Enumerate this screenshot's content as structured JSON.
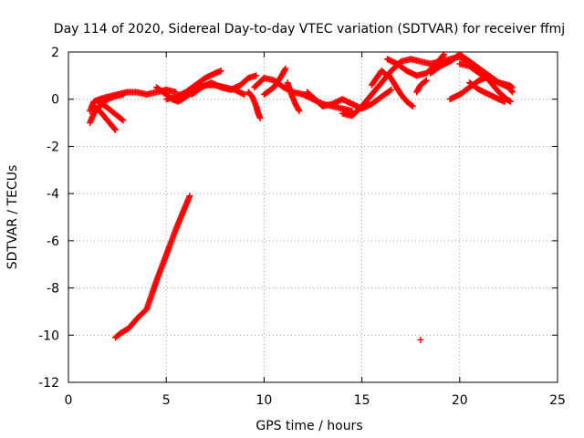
{
  "chart_data": {
    "type": "scatter",
    "title": "Day 114 of 2020, Sidereal Day-to-day VTEC variation (SDTVAR) for receiver ffmj",
    "xlabel": "GPS time / hours",
    "ylabel": "SDTVAR / TECUs",
    "xlim": [
      0,
      25
    ],
    "ylim": [
      -12,
      2
    ],
    "xticks": [
      0,
      5,
      10,
      15,
      20,
      25
    ],
    "yticks": [
      -12,
      -10,
      -8,
      -6,
      -4,
      -2,
      0,
      2
    ],
    "grid": true,
    "marker_color": "#ff0000",
    "series": [
      {
        "name": "SDTVAR",
        "tracks": [
          [
            [
              1.1,
              -0.5
            ],
            [
              1.3,
              -0.1
            ],
            [
              1.6,
              0.0
            ],
            [
              2.0,
              0.1
            ],
            [
              2.5,
              0.2
            ],
            [
              3.0,
              0.3
            ],
            [
              3.5,
              0.3
            ],
            [
              4.0,
              0.2
            ],
            [
              4.5,
              0.3
            ],
            [
              5.0,
              0.4
            ],
            [
              5.5,
              0.3
            ]
          ],
          [
            [
              1.1,
              -1.0
            ],
            [
              1.3,
              -0.6
            ],
            [
              1.6,
              -0.3
            ],
            [
              2.0,
              0.0
            ],
            [
              2.3,
              0.1
            ],
            [
              2.8,
              0.2
            ]
          ],
          [
            [
              1.2,
              -0.3
            ],
            [
              1.5,
              -0.4
            ],
            [
              1.8,
              -0.7
            ],
            [
              2.1,
              -1.0
            ],
            [
              2.4,
              -1.3
            ]
          ],
          [
            [
              1.5,
              -0.1
            ],
            [
              1.9,
              -0.3
            ],
            [
              2.2,
              -0.5
            ],
            [
              2.5,
              -0.7
            ],
            [
              2.8,
              -0.9
            ]
          ],
          [
            [
              2.4,
              -10.1
            ],
            [
              2.7,
              -9.9
            ],
            [
              3.1,
              -9.7
            ],
            [
              3.5,
              -9.3
            ],
            [
              4.0,
              -8.9
            ],
            [
              4.5,
              -7.7
            ],
            [
              5.0,
              -6.6
            ],
            [
              5.5,
              -5.5
            ],
            [
              6.0,
              -4.5
            ],
            [
              6.2,
              -4.1
            ]
          ],
          [
            [
              4.5,
              0.5
            ],
            [
              5.0,
              0.2
            ],
            [
              5.3,
              0.0
            ],
            [
              5.6,
              -0.1
            ],
            [
              6.0,
              0.1
            ],
            [
              6.5,
              0.4
            ],
            [
              7.0,
              0.6
            ],
            [
              7.5,
              0.6
            ],
            [
              8.0,
              0.5
            ],
            [
              8.5,
              0.4
            ],
            [
              9.0,
              0.2
            ]
          ],
          [
            [
              5.0,
              0.0
            ],
            [
              5.5,
              0.1
            ],
            [
              6.0,
              0.3
            ],
            [
              6.5,
              0.6
            ],
            [
              7.0,
              0.9
            ],
            [
              7.5,
              1.1
            ],
            [
              7.8,
              1.2
            ]
          ],
          [
            [
              6.3,
              0.2
            ],
            [
              6.8,
              0.5
            ],
            [
              7.3,
              0.7
            ],
            [
              7.8,
              0.5
            ],
            [
              8.3,
              0.4
            ],
            [
              8.8,
              0.6
            ],
            [
              9.2,
              0.9
            ],
            [
              9.6,
              1.0
            ]
          ],
          [
            [
              9.2,
              0.3
            ],
            [
              9.4,
              0.1
            ],
            [
              9.6,
              -0.3
            ],
            [
              9.7,
              -0.6
            ],
            [
              9.8,
              -0.8
            ]
          ],
          [
            [
              9.5,
              0.5
            ],
            [
              10.0,
              0.9
            ],
            [
              10.5,
              0.8
            ],
            [
              11.0,
              0.5
            ],
            [
              11.5,
              0.3
            ],
            [
              12.0,
              0.2
            ],
            [
              12.5,
              0.0
            ],
            [
              13.0,
              -0.2
            ],
            [
              13.5,
              -0.3
            ],
            [
              14.0,
              -0.4
            ],
            [
              14.5,
              -0.5
            ]
          ],
          [
            [
              10.0,
              0.2
            ],
            [
              10.5,
              0.5
            ],
            [
              10.9,
              1.0
            ],
            [
              11.1,
              1.3
            ]
          ],
          [
            [
              11.2,
              0.7
            ],
            [
              11.4,
              0.2
            ],
            [
              11.6,
              -0.2
            ],
            [
              11.8,
              -0.5
            ]
          ],
          [
            [
              12.2,
              0.3
            ],
            [
              12.6,
              0.0
            ],
            [
              13.0,
              -0.3
            ],
            [
              13.5,
              -0.2
            ],
            [
              14.0,
              0.0
            ],
            [
              14.5,
              -0.2
            ],
            [
              15.0,
              -0.4
            ],
            [
              15.5,
              -0.2
            ],
            [
              16.0,
              0.1
            ],
            [
              16.5,
              0.4
            ]
          ],
          [
            [
              14.0,
              -0.6
            ],
            [
              14.5,
              -0.7
            ],
            [
              15.0,
              -0.3
            ],
            [
              15.5,
              0.2
            ],
            [
              16.0,
              0.7
            ],
            [
              16.5,
              1.2
            ],
            [
              17.0,
              1.6
            ],
            [
              17.5,
              1.7
            ],
            [
              18.0,
              1.6
            ],
            [
              18.5,
              1.5
            ],
            [
              19.0,
              1.6
            ],
            [
              19.5,
              1.7
            ],
            [
              20.0,
              1.8
            ],
            [
              20.5,
              1.6
            ],
            [
              21.0,
              1.3
            ],
            [
              21.5,
              1.0
            ],
            [
              22.0,
              0.7
            ],
            [
              22.5,
              0.5
            ],
            [
              22.7,
              0.3
            ]
          ],
          [
            [
              15.5,
              0.6
            ],
            [
              16.0,
              1.2
            ],
            [
              16.3,
              1.0
            ]
          ],
          [
            [
              16.4,
              1.0
            ],
            [
              16.7,
              0.6
            ],
            [
              17.0,
              0.2
            ],
            [
              17.3,
              -0.1
            ],
            [
              17.6,
              -0.3
            ]
          ],
          [
            [
              16.3,
              1.7
            ],
            [
              16.8,
              1.5
            ],
            [
              17.3,
              1.2
            ],
            [
              17.8,
              1.0
            ],
            [
              18.3,
              1.1
            ],
            [
              18.8,
              1.5
            ],
            [
              19.2,
              1.9
            ]
          ],
          [
            [
              17.8,
              0.3
            ],
            [
              18.0,
              0.6
            ],
            [
              18.3,
              0.8
            ]
          ],
          [
            [
              18.0,
              -10.2
            ]
          ],
          [
            [
              18.5,
              1.1
            ],
            [
              19.0,
              1.4
            ],
            [
              19.5,
              1.6
            ],
            [
              20.0,
              1.9
            ],
            [
              20.5,
              1.6
            ],
            [
              21.0,
              1.2
            ],
            [
              21.5,
              0.8
            ],
            [
              22.0,
              0.3
            ],
            [
              22.4,
              0.0
            ],
            [
              22.6,
              -0.1
            ]
          ],
          [
            [
              19.5,
              0.0
            ],
            [
              20.0,
              0.2
            ],
            [
              20.5,
              0.5
            ],
            [
              21.0,
              0.8
            ],
            [
              21.3,
              0.9
            ]
          ],
          [
            [
              20.0,
              1.5
            ],
            [
              20.5,
              1.4
            ],
            [
              21.0,
              1.1
            ],
            [
              21.5,
              0.9
            ],
            [
              22.0,
              0.7
            ],
            [
              22.5,
              0.6
            ],
            [
              22.7,
              0.5
            ]
          ],
          [
            [
              20.5,
              0.7
            ],
            [
              21.0,
              0.4
            ],
            [
              21.5,
              0.2
            ],
            [
              22.0,
              0.0
            ],
            [
              22.3,
              -0.1
            ]
          ]
        ]
      }
    ]
  }
}
